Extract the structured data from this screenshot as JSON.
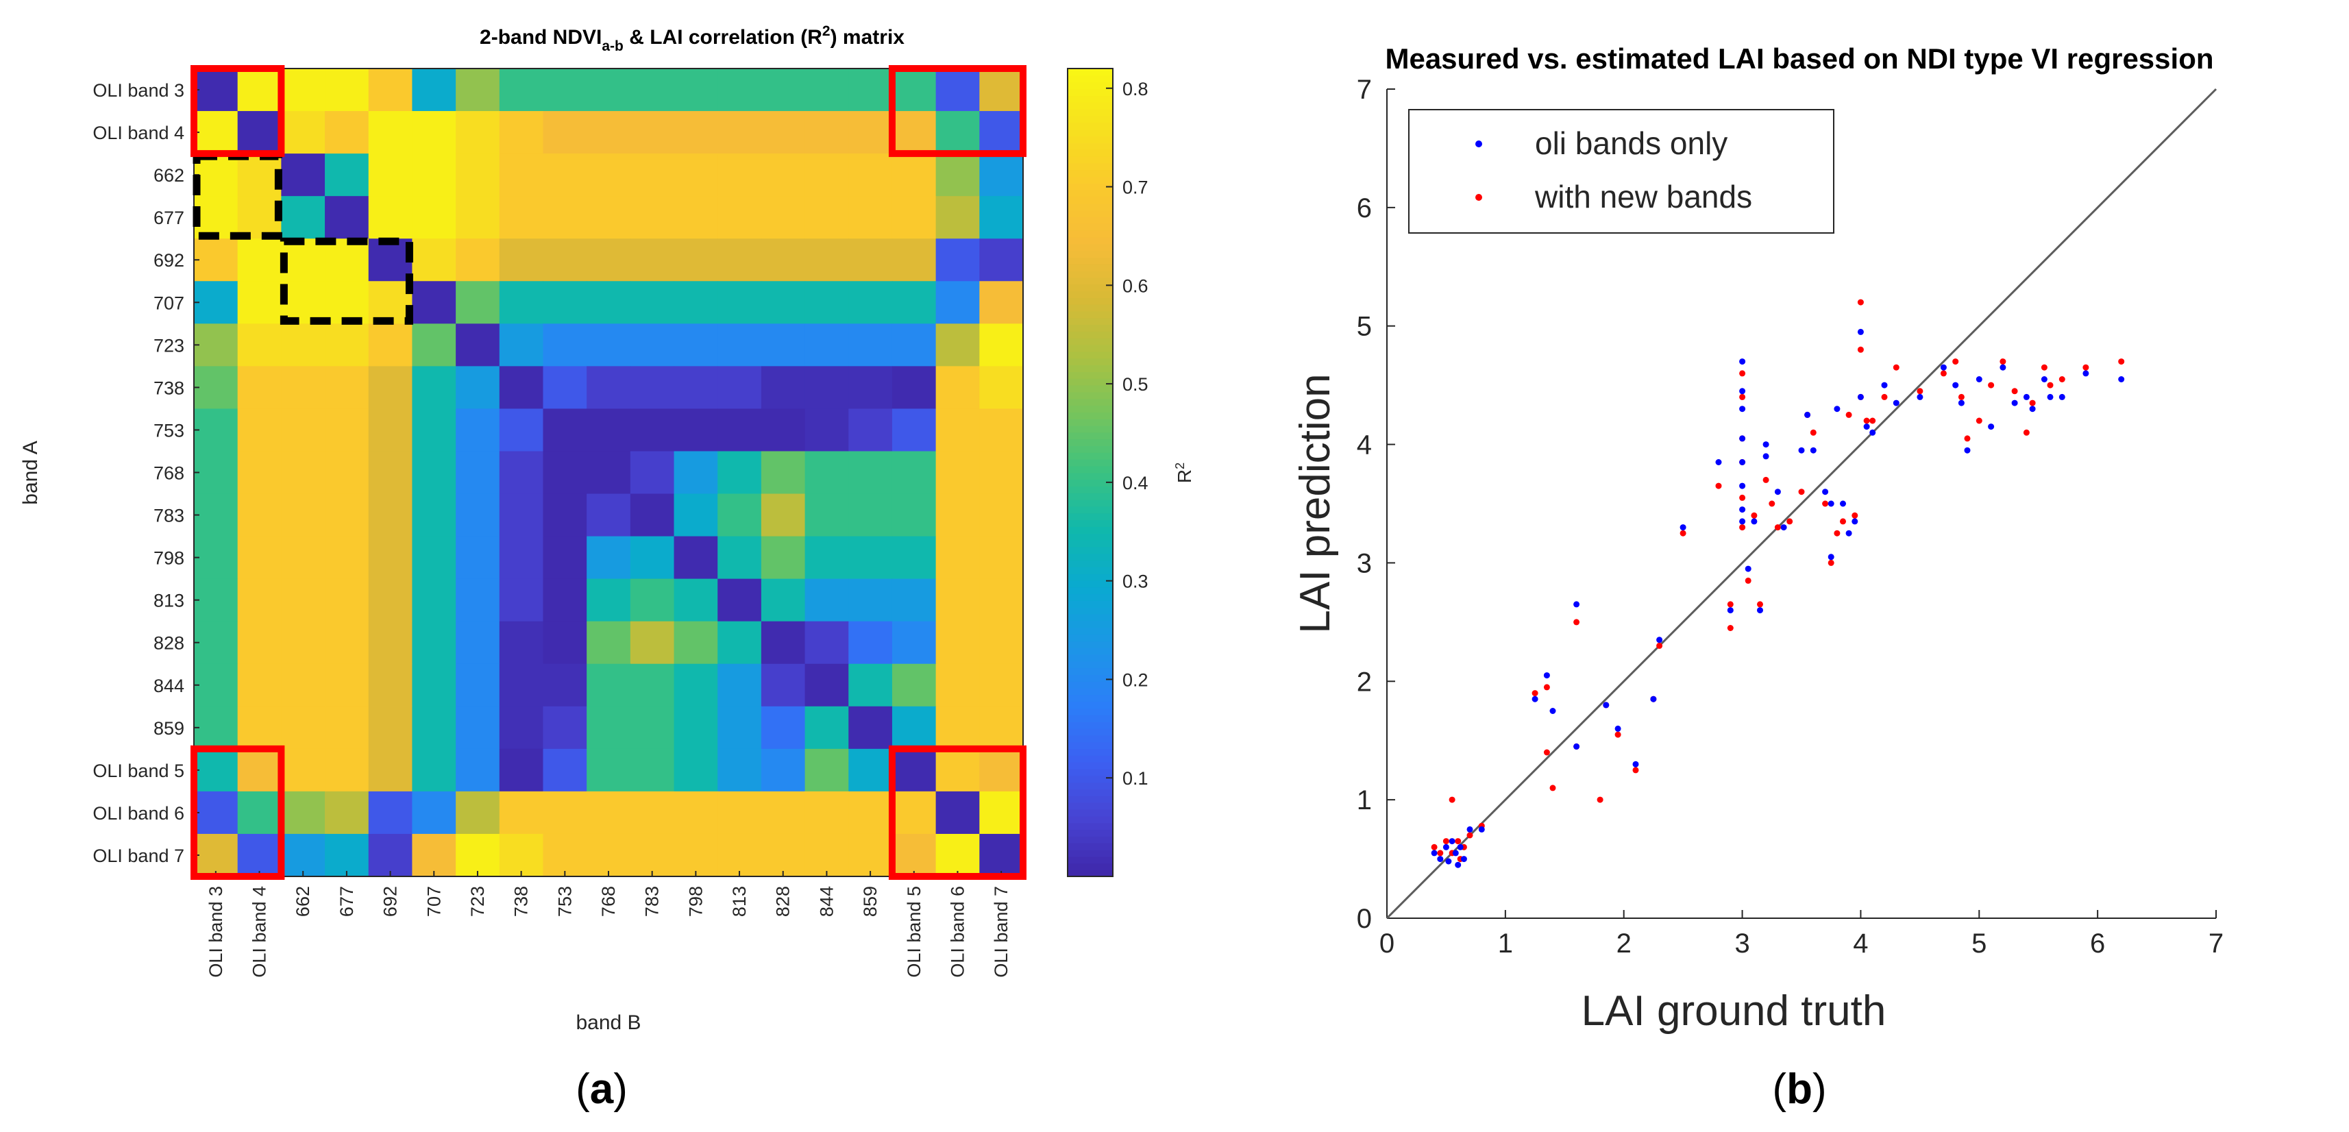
{
  "colors": {
    "colormap": [
      "#3e26a8",
      "#4743d2",
      "#3c60f2",
      "#2b7ff8",
      "#1c96e6",
      "#0aa9d1",
      "#10b8ac",
      "#3ac281",
      "#74c45d",
      "#abc142",
      "#d7ba36",
      "#f6bc38",
      "#faca2c",
      "#f7e11e",
      "#f9f714"
    ],
    "red_box": "#ff0000",
    "dashed_box": "#000000",
    "series_oli": "#0000ff",
    "series_new": "#ff0000",
    "one_to_one": "#5c5c5c"
  },
  "panels": {
    "a_label": "a",
    "b_label": "b"
  },
  "chart_data": [
    {
      "type": "heatmap",
      "panel": "a",
      "title_parts": {
        "main": "2-band NDVI",
        "subscript": "a-b",
        "mid": " & LAI correlation (R",
        "superscript": "2",
        "end": ") matrix"
      },
      "xlabel": "band B",
      "ylabel": "band A",
      "x_categories": [
        "OLI band 3",
        "OLI band 4",
        "662",
        "677",
        "692",
        "707",
        "723",
        "738",
        "753",
        "768",
        "783",
        "798",
        "813",
        "828",
        "844",
        "859",
        "OLI band 5",
        "OLI band 6",
        "OLI band 7"
      ],
      "y_categories": [
        "OLI band 3",
        "OLI band 4",
        "662",
        "677",
        "692",
        "707",
        "723",
        "738",
        "753",
        "768",
        "783",
        "798",
        "813",
        "828",
        "844",
        "859",
        "OLI band 5",
        "OLI band 6",
        "OLI band 7"
      ],
      "values": [
        [
          0.01,
          0.8,
          0.8,
          0.8,
          0.7,
          0.3,
          0.5,
          0.4,
          0.4,
          0.4,
          0.4,
          0.4,
          0.4,
          0.4,
          0.4,
          0.4,
          0.4,
          0.1,
          0.6
        ],
        [
          0.8,
          0.01,
          0.75,
          0.7,
          0.8,
          0.8,
          0.75,
          0.7,
          0.65,
          0.65,
          0.65,
          0.65,
          0.65,
          0.65,
          0.65,
          0.65,
          0.65,
          0.4,
          0.1
        ],
        [
          0.8,
          0.75,
          0.01,
          0.35,
          0.8,
          0.8,
          0.75,
          0.7,
          0.7,
          0.7,
          0.7,
          0.7,
          0.7,
          0.7,
          0.7,
          0.7,
          0.7,
          0.5,
          0.25
        ],
        [
          0.8,
          0.75,
          0.35,
          0.01,
          0.8,
          0.8,
          0.75,
          0.7,
          0.7,
          0.7,
          0.7,
          0.7,
          0.7,
          0.7,
          0.7,
          0.7,
          0.7,
          0.55,
          0.3
        ],
        [
          0.7,
          0.8,
          0.8,
          0.8,
          0.01,
          0.75,
          0.7,
          0.6,
          0.6,
          0.6,
          0.6,
          0.6,
          0.6,
          0.6,
          0.6,
          0.6,
          0.6,
          0.1,
          0.05
        ],
        [
          0.3,
          0.8,
          0.8,
          0.8,
          0.75,
          0.01,
          0.45,
          0.35,
          0.35,
          0.35,
          0.35,
          0.35,
          0.35,
          0.35,
          0.35,
          0.35,
          0.35,
          0.2,
          0.65
        ],
        [
          0.5,
          0.75,
          0.75,
          0.75,
          0.7,
          0.45,
          0.01,
          0.25,
          0.2,
          0.2,
          0.2,
          0.2,
          0.2,
          0.2,
          0.2,
          0.2,
          0.2,
          0.55,
          0.8
        ],
        [
          0.45,
          0.7,
          0.7,
          0.7,
          0.6,
          0.35,
          0.25,
          0.01,
          0.1,
          0.05,
          0.05,
          0.05,
          0.05,
          0.02,
          0.02,
          0.02,
          0.01,
          0.7,
          0.75
        ],
        [
          0.4,
          0.7,
          0.7,
          0.7,
          0.6,
          0.35,
          0.2,
          0.1,
          0.01,
          0.01,
          0.01,
          0.01,
          0.01,
          0.01,
          0.02,
          0.05,
          0.1,
          0.7,
          0.7
        ],
        [
          0.4,
          0.7,
          0.7,
          0.7,
          0.6,
          0.35,
          0.2,
          0.05,
          0.01,
          0.01,
          0.05,
          0.25,
          0.35,
          0.45,
          0.4,
          0.4,
          0.4,
          0.7,
          0.7
        ],
        [
          0.4,
          0.7,
          0.7,
          0.7,
          0.6,
          0.35,
          0.2,
          0.05,
          0.01,
          0.05,
          0.01,
          0.3,
          0.4,
          0.55,
          0.4,
          0.4,
          0.4,
          0.7,
          0.7
        ],
        [
          0.4,
          0.7,
          0.7,
          0.7,
          0.6,
          0.35,
          0.2,
          0.05,
          0.01,
          0.25,
          0.3,
          0.01,
          0.35,
          0.45,
          0.35,
          0.35,
          0.35,
          0.7,
          0.7
        ],
        [
          0.4,
          0.7,
          0.7,
          0.7,
          0.6,
          0.35,
          0.2,
          0.05,
          0.01,
          0.35,
          0.4,
          0.35,
          0.01,
          0.35,
          0.25,
          0.25,
          0.25,
          0.7,
          0.7
        ],
        [
          0.4,
          0.7,
          0.7,
          0.7,
          0.6,
          0.35,
          0.2,
          0.02,
          0.01,
          0.45,
          0.55,
          0.45,
          0.35,
          0.01,
          0.05,
          0.15,
          0.2,
          0.7,
          0.7
        ],
        [
          0.4,
          0.7,
          0.7,
          0.7,
          0.6,
          0.35,
          0.2,
          0.02,
          0.02,
          0.4,
          0.4,
          0.35,
          0.25,
          0.05,
          0.01,
          0.35,
          0.45,
          0.7,
          0.7
        ],
        [
          0.4,
          0.7,
          0.7,
          0.7,
          0.6,
          0.35,
          0.2,
          0.02,
          0.05,
          0.4,
          0.4,
          0.35,
          0.25,
          0.15,
          0.35,
          0.01,
          0.3,
          0.7,
          0.7
        ],
        [
          0.35,
          0.65,
          0.7,
          0.7,
          0.6,
          0.35,
          0.2,
          0.01,
          0.1,
          0.4,
          0.4,
          0.35,
          0.25,
          0.2,
          0.45,
          0.3,
          0.01,
          0.7,
          0.65
        ],
        [
          0.1,
          0.4,
          0.5,
          0.55,
          0.1,
          0.2,
          0.55,
          0.7,
          0.7,
          0.7,
          0.7,
          0.7,
          0.7,
          0.7,
          0.7,
          0.7,
          0.7,
          0.01,
          0.8
        ],
        [
          0.6,
          0.1,
          0.25,
          0.3,
          0.05,
          0.65,
          0.8,
          0.75,
          0.7,
          0.7,
          0.7,
          0.7,
          0.7,
          0.7,
          0.7,
          0.7,
          0.65,
          0.8,
          0.01
        ]
      ],
      "colorbar": {
        "label": "R",
        "label_superscript": "2",
        "range": [
          0,
          0.82
        ],
        "ticks": [
          0.1,
          0.2,
          0.3,
          0.4,
          0.5,
          0.6,
          0.7,
          0.8
        ]
      },
      "annotations": {
        "red_boxes": [
          {
            "rows": [
              "OLI band 3",
              "OLI band 4"
            ],
            "cols": [
              "OLI band 3",
              "OLI band 4"
            ]
          },
          {
            "rows": [
              "OLI band 3",
              "OLI band 4"
            ],
            "cols": [
              "OLI band 5",
              "OLI band 7"
            ]
          },
          {
            "rows": [
              "OLI band 5",
              "OLI band 7"
            ],
            "cols": [
              "OLI band 3",
              "OLI band 4"
            ]
          },
          {
            "rows": [
              "OLI band 5",
              "OLI band 7"
            ],
            "cols": [
              "OLI band 5",
              "OLI band 7"
            ]
          }
        ],
        "dashed_boxes": [
          {
            "rows": [
              "662",
              "677"
            ],
            "cols": [
              "OLI band 3",
              "OLI band 4"
            ]
          },
          {
            "rows": [
              "692",
              "707"
            ],
            "cols": [
              "662",
              "692"
            ]
          }
        ]
      }
    },
    {
      "type": "scatter",
      "panel": "b",
      "title": "Measured vs. estimated LAI based on NDI type VI regression",
      "xlabel": "LAI ground truth",
      "ylabel": "LAI prediction",
      "xlim": [
        0,
        7
      ],
      "ylim": [
        0,
        7
      ],
      "xticks": [
        0,
        1,
        2,
        3,
        4,
        5,
        6,
        7
      ],
      "yticks": [
        0,
        1,
        2,
        3,
        4,
        5,
        6,
        7
      ],
      "reference_line": [
        [
          0,
          0
        ],
        [
          7,
          7
        ]
      ],
      "legend_position": "top-left",
      "series": [
        {
          "name": "oli bands only",
          "points": [
            [
              0.4,
              0.55
            ],
            [
              0.45,
              0.5
            ],
            [
              0.5,
              0.6
            ],
            [
              0.52,
              0.48
            ],
            [
              0.55,
              0.65
            ],
            [
              0.58,
              0.55
            ],
            [
              0.6,
              0.45
            ],
            [
              0.62,
              0.6
            ],
            [
              0.65,
              0.5
            ],
            [
              0.7,
              0.75
            ],
            [
              0.8,
              0.75
            ],
            [
              1.25,
              1.85
            ],
            [
              1.35,
              2.05
            ],
            [
              1.4,
              1.75
            ],
            [
              1.6,
              2.65
            ],
            [
              1.6,
              1.45
            ],
            [
              1.85,
              1.8
            ],
            [
              1.95,
              1.6
            ],
            [
              2.1,
              1.3
            ],
            [
              2.25,
              1.85
            ],
            [
              2.3,
              2.35
            ],
            [
              2.5,
              3.3
            ],
            [
              2.8,
              3.85
            ],
            [
              2.9,
              2.6
            ],
            [
              3.0,
              4.7
            ],
            [
              3.0,
              4.45
            ],
            [
              3.0,
              4.3
            ],
            [
              3.0,
              4.05
            ],
            [
              3.0,
              3.85
            ],
            [
              3.0,
              3.65
            ],
            [
              3.0,
              3.45
            ],
            [
              3.0,
              3.35
            ],
            [
              3.05,
              2.95
            ],
            [
              3.1,
              3.35
            ],
            [
              3.15,
              2.6
            ],
            [
              3.2,
              4.0
            ],
            [
              3.2,
              3.9
            ],
            [
              3.3,
              3.6
            ],
            [
              3.35,
              3.3
            ],
            [
              3.5,
              3.95
            ],
            [
              3.55,
              4.25
            ],
            [
              3.6,
              3.95
            ],
            [
              3.7,
              3.6
            ],
            [
              3.75,
              3.5
            ],
            [
              3.75,
              3.05
            ],
            [
              3.8,
              4.3
            ],
            [
              3.85,
              3.5
            ],
            [
              3.9,
              3.25
            ],
            [
              3.95,
              3.35
            ],
            [
              4.0,
              4.95
            ],
            [
              4.0,
              4.4
            ],
            [
              4.05,
              4.15
            ],
            [
              4.1,
              4.1
            ],
            [
              4.2,
              4.5
            ],
            [
              4.3,
              4.35
            ],
            [
              4.5,
              4.4
            ],
            [
              4.7,
              4.65
            ],
            [
              4.8,
              4.5
            ],
            [
              4.85,
              4.35
            ],
            [
              4.9,
              3.95
            ],
            [
              5.0,
              4.55
            ],
            [
              5.1,
              4.15
            ],
            [
              5.2,
              4.65
            ],
            [
              5.3,
              4.35
            ],
            [
              5.4,
              4.4
            ],
            [
              5.45,
              4.3
            ],
            [
              5.55,
              4.55
            ],
            [
              5.6,
              4.4
            ],
            [
              5.7,
              4.4
            ],
            [
              5.9,
              4.6
            ],
            [
              6.2,
              4.55
            ]
          ]
        },
        {
          "name": "with new bands",
          "points": [
            [
              0.4,
              0.6
            ],
            [
              0.45,
              0.55
            ],
            [
              0.5,
              0.65
            ],
            [
              0.55,
              1.0
            ],
            [
              0.55,
              0.55
            ],
            [
              0.6,
              0.65
            ],
            [
              0.62,
              0.5
            ],
            [
              0.65,
              0.6
            ],
            [
              0.7,
              0.7
            ],
            [
              0.8,
              0.78
            ],
            [
              1.25,
              1.9
            ],
            [
              1.35,
              1.4
            ],
            [
              1.35,
              1.95
            ],
            [
              1.4,
              1.1
            ],
            [
              1.6,
              2.5
            ],
            [
              1.6,
              1.45
            ],
            [
              1.8,
              1.0
            ],
            [
              1.85,
              1.8
            ],
            [
              1.95,
              1.55
            ],
            [
              2.1,
              1.25
            ],
            [
              2.25,
              1.85
            ],
            [
              2.3,
              2.3
            ],
            [
              2.5,
              3.25
            ],
            [
              2.8,
              3.65
            ],
            [
              2.9,
              2.45
            ],
            [
              2.9,
              2.65
            ],
            [
              3.0,
              4.6
            ],
            [
              3.0,
              4.4
            ],
            [
              3.0,
              4.05
            ],
            [
              3.0,
              3.85
            ],
            [
              3.0,
              3.55
            ],
            [
              3.0,
              3.3
            ],
            [
              3.05,
              2.85
            ],
            [
              3.1,
              3.4
            ],
            [
              3.15,
              2.65
            ],
            [
              3.2,
              3.7
            ],
            [
              3.25,
              3.5
            ],
            [
              3.3,
              3.3
            ],
            [
              3.4,
              3.35
            ],
            [
              3.5,
              3.6
            ],
            [
              3.55,
              4.25
            ],
            [
              3.6,
              4.1
            ],
            [
              3.7,
              3.5
            ],
            [
              3.75,
              3.0
            ],
            [
              3.8,
              3.25
            ],
            [
              3.85,
              3.35
            ],
            [
              3.9,
              4.25
            ],
            [
              3.95,
              3.4
            ],
            [
              4.0,
              5.2
            ],
            [
              4.0,
              4.8
            ],
            [
              4.0,
              4.4
            ],
            [
              4.05,
              4.2
            ],
            [
              4.1,
              4.2
            ],
            [
              4.2,
              4.4
            ],
            [
              4.3,
              4.65
            ],
            [
              4.5,
              4.45
            ],
            [
              4.7,
              4.6
            ],
            [
              4.8,
              4.7
            ],
            [
              4.85,
              4.4
            ],
            [
              4.9,
              4.05
            ],
            [
              5.0,
              4.2
            ],
            [
              5.1,
              4.5
            ],
            [
              5.2,
              4.7
            ],
            [
              5.3,
              4.45
            ],
            [
              5.4,
              4.1
            ],
            [
              5.45,
              4.35
            ],
            [
              5.55,
              4.65
            ],
            [
              5.6,
              4.5
            ],
            [
              5.7,
              4.55
            ],
            [
              5.9,
              4.65
            ],
            [
              6.2,
              4.7
            ]
          ]
        }
      ]
    }
  ]
}
